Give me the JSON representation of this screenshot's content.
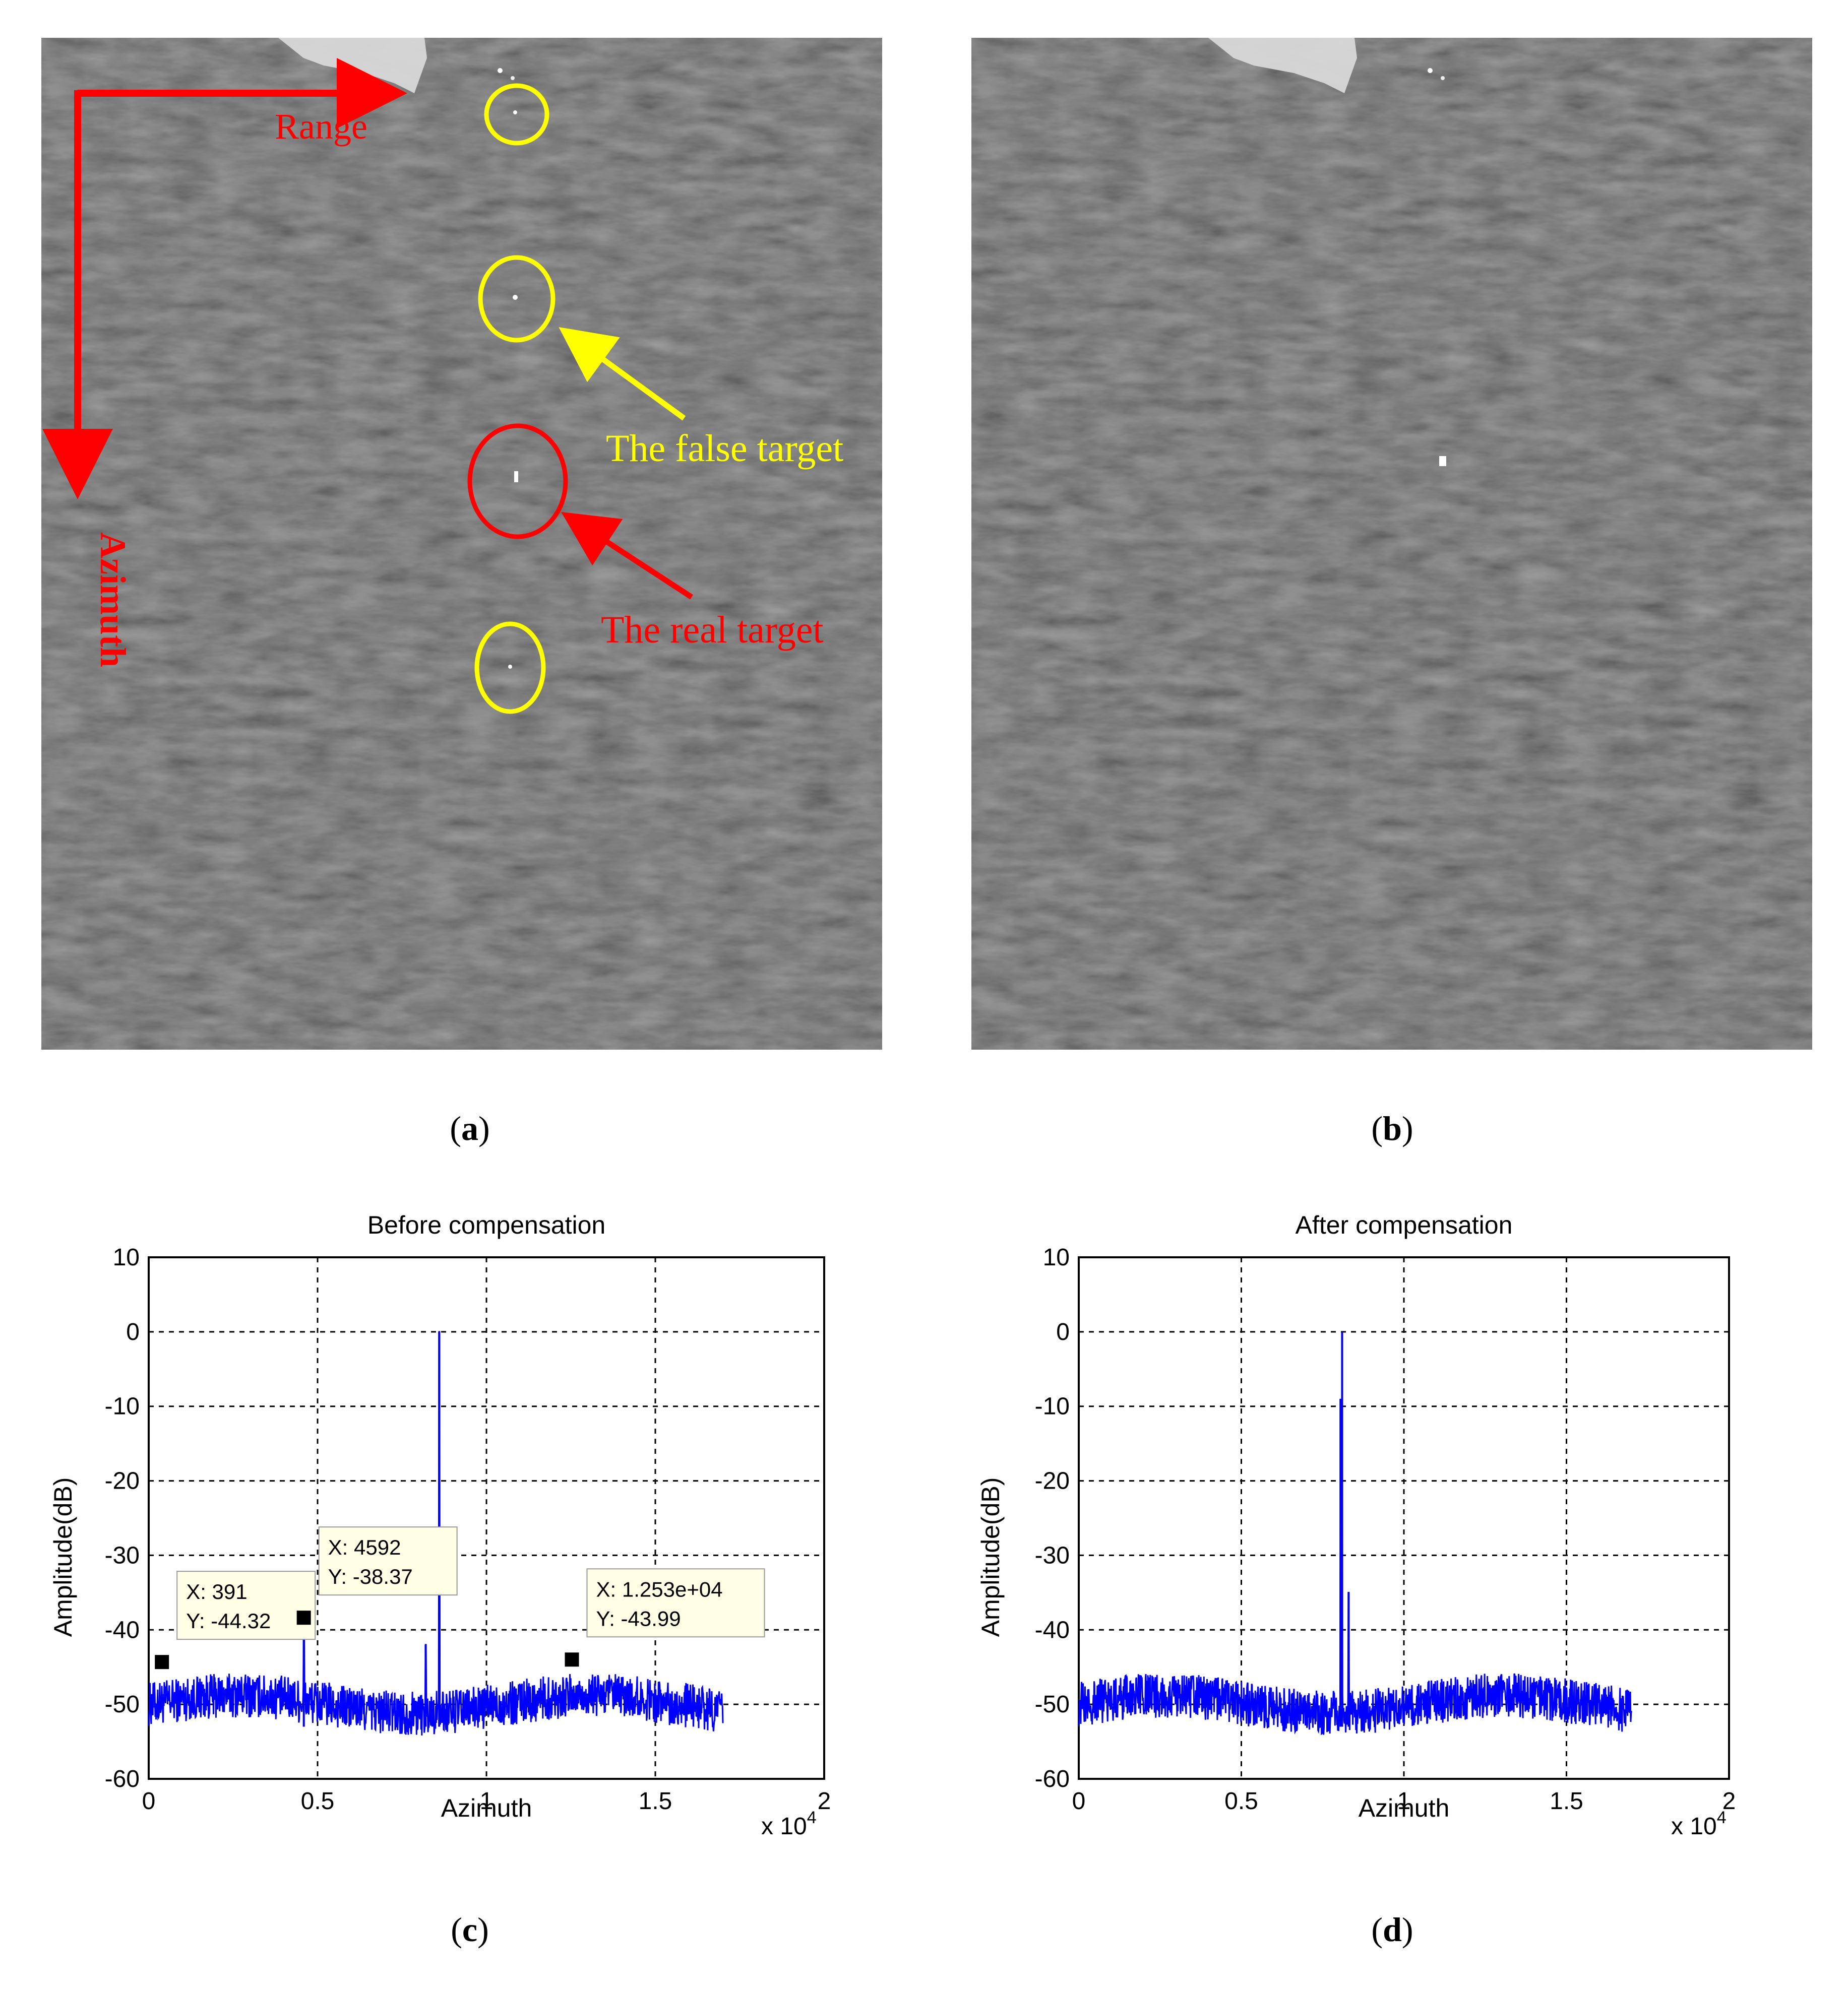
{
  "figure": {
    "panel_a": {
      "caption_open": "(",
      "caption_letter": "a",
      "caption_close": ")",
      "range_label": "Range",
      "azimuth_label": "Azimuth",
      "false_target_label": "The false target",
      "real_target_label": "The real target",
      "colors": {
        "axis_arrows": "#ff0000",
        "false_target": "#ffff00",
        "real_target": "#ff0000"
      }
    },
    "panel_b": {
      "caption_open": "(",
      "caption_letter": "b",
      "caption_close": ")"
    },
    "panel_c": {
      "caption_open": "(",
      "caption_letter": "c",
      "caption_close": ")"
    },
    "panel_d": {
      "caption_open": "(",
      "caption_letter": "d",
      "caption_close": ")"
    }
  },
  "chart_data": [
    {
      "type": "line",
      "title": "Before compensation",
      "xlabel": "Azimuth",
      "ylabel": "Amplitude(dB)",
      "x_multiplier": "x 10",
      "x_multiplier_exp": "4",
      "xlim": [
        0,
        2
      ],
      "ylim": [
        -60,
        10
      ],
      "xticks": [
        "0",
        "0.5",
        "1",
        "1.5",
        "2"
      ],
      "yticks": [
        "10",
        "0",
        "-10",
        "-20",
        "-30",
        "-40",
        "-50",
        "-60"
      ],
      "grid": true,
      "line_color": "#0000ff",
      "series": [
        {
          "noise_floor_db": -50,
          "x_start": 0,
          "x_end": 1.7,
          "peaks": [
            {
              "x": 0.86,
              "y": 0
            },
            {
              "x": 0.4592,
              "y": -38.37
            },
            {
              "x": 0.82,
              "y": -42
            }
          ]
        }
      ],
      "datatips": [
        {
          "x": 0.0391,
          "y": -44.32,
          "label_x": "X: 391",
          "label_y": "Y: -44.32"
        },
        {
          "x": 0.4592,
          "y": -38.37,
          "label_x": "X: 4592",
          "label_y": "Y: -38.37"
        },
        {
          "x": 1.253,
          "y": -43.99,
          "label_x": "X: 1.253e+04",
          "label_y": "Y: -43.99"
        }
      ]
    },
    {
      "type": "line",
      "title": "After compensation",
      "xlabel": "Azimuth",
      "ylabel": "Amplitude(dB)",
      "x_multiplier": "x 10",
      "x_multiplier_exp": "4",
      "xlim": [
        0,
        2
      ],
      "ylim": [
        -60,
        10
      ],
      "xticks": [
        "0",
        "0.5",
        "1",
        "1.5",
        "2"
      ],
      "yticks": [
        "10",
        "0",
        "-10",
        "-20",
        "-30",
        "-40",
        "-50",
        "-60"
      ],
      "grid": true,
      "line_color": "#0000ff",
      "series": [
        {
          "noise_floor_db": -50,
          "x_start": 0,
          "x_end": 1.7,
          "peaks": [
            {
              "x": 0.81,
              "y": 0
            },
            {
              "x": 0.805,
              "y": -9
            },
            {
              "x": 0.83,
              "y": -35
            }
          ]
        }
      ],
      "datatips": []
    }
  ]
}
